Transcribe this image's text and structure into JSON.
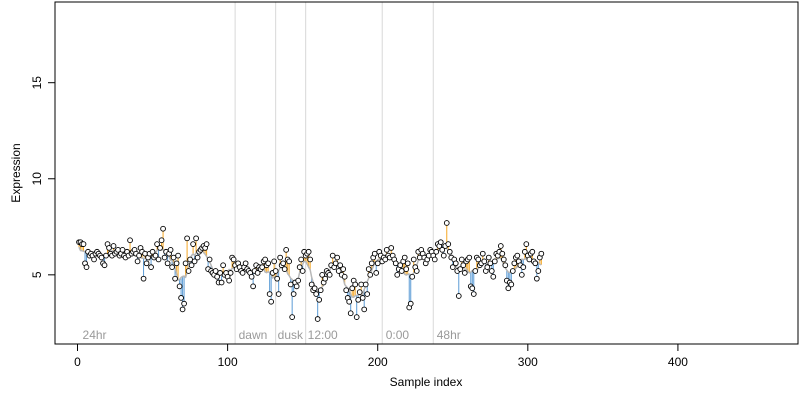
{
  "chart_data": {
    "type": "scatter",
    "xlabel": "Sample index",
    "ylabel": "Expression",
    "xlim": [
      -15,
      480
    ],
    "ylim": [
      1.4,
      19.2
    ],
    "x_ticks": [
      0,
      100,
      200,
      300,
      400
    ],
    "y_ticks": [
      5,
      10,
      15
    ],
    "baseline": 5.7,
    "grid": false,
    "legend": "none",
    "colors": {
      "up": "#f5a623",
      "down": "#5b9bd5",
      "point_fill": "#ffffff",
      "point_stroke": "#000000",
      "trend": "#b8b8b8",
      "vline": "#d8d8d8"
    },
    "annotations": [
      {
        "x": 2,
        "label": "24hr"
      },
      {
        "x": 106,
        "label": "dawn"
      },
      {
        "x": 132,
        "label": "dusk"
      },
      {
        "x": 152,
        "label": "12:00"
      },
      {
        "x": 204,
        "label": "0:00"
      },
      {
        "x": 238,
        "label": "48hr"
      }
    ],
    "vlines": [
      105,
      132,
      152,
      203,
      237
    ],
    "series": [
      {
        "x_start": 1,
        "values": [
          6.7,
          6.7,
          6.6,
          6.6,
          5.6,
          5.4,
          6.2,
          6.0,
          6.1,
          6.0,
          5.8,
          6.1,
          6.2,
          6.1,
          6.0,
          5.9,
          5.6,
          5.5,
          6.0,
          6.6,
          6.4,
          6.1,
          6.0,
          6.5,
          6.1,
          6.2,
          6.3,
          6.0,
          6.1,
          6.3,
          6.0,
          5.9,
          6.2,
          6.0,
          6.8,
          6.1,
          6.2,
          6.3,
          6.1,
          5.7,
          6.0,
          6.4,
          6.2,
          4.8,
          6.1,
          5.6,
          5.9,
          6.1,
          5.4,
          6.2,
          5.9,
          6.0,
          6.6,
          5.8,
          6.4,
          6.8,
          7.4,
          5.9,
          6.2,
          5.6,
          6.1,
          6.3,
          5.4,
          5.9,
          4.8,
          5.6,
          6.0,
          4.4,
          3.8,
          3.2,
          3.5,
          5.6,
          6.9,
          5.2,
          5.8,
          5.5,
          6.6,
          5.7,
          6.9,
          5.9,
          6.2,
          6.3,
          6.4,
          6.5,
          6.4,
          6.6,
          5.3,
          5.8,
          5.2,
          5.1,
          5.0,
          5.2,
          4.9,
          4.6,
          5.1,
          4.6,
          5.5,
          5.0,
          5.1,
          4.9,
          4.7,
          5.1,
          5.9,
          5.8,
          5.5,
          5.3,
          5.6,
          5.4,
          5.2,
          5.1,
          5.4,
          5.6,
          5.3,
          5.2,
          5.1,
          4.9,
          4.4,
          5.2,
          5.5,
          5.1,
          5.4,
          5.3,
          5.4,
          5.7,
          5.8,
          5.5,
          5.6,
          4.0,
          3.6,
          5.1,
          5.7,
          5.2,
          4.8,
          4.0,
          5.9,
          5.5,
          5.6,
          5.3,
          6.3,
          5.8,
          5.7,
          4.5,
          2.8,
          4.0,
          4.6,
          4.4,
          4.7,
          5.4,
          5.8,
          5.2,
          6.2,
          6.0,
          6.1,
          6.2,
          5.8,
          4.5,
          4.2,
          4.3,
          4.0,
          2.7,
          3.7,
          4.2,
          5.0,
          4.6,
          4.8,
          5.2,
          5.1,
          5.0,
          5.5,
          6.0,
          5.4,
          5.6,
          5.9,
          5.2,
          5.5,
          5.0,
          5.3,
          4.9,
          4.2,
          3.8,
          3.6,
          3.0,
          4.3,
          4.7,
          4.5,
          2.8,
          3.7,
          4.1,
          4.5,
          3.8,
          3.2,
          4.5,
          4.0,
          5.3,
          5.0,
          5.6,
          5.9,
          6.1,
          5.1,
          5.6,
          6.2,
          6.0,
          5.7,
          5.9,
          5.8,
          6.3,
          6.0,
          5.9,
          6.4,
          6.0,
          5.8,
          5.6,
          5.0,
          5.3,
          5.5,
          5.2,
          5.7,
          5.9,
          5.3,
          5.6,
          3.3,
          3.5,
          4.9,
          5.8,
          5.4,
          5.2,
          6.2,
          5.9,
          6.3,
          6.1,
          5.9,
          5.6,
          5.8,
          6.0,
          6.3,
          6.2,
          6.0,
          5.8,
          6.2,
          6.6,
          6.5,
          6.7,
          6.3,
          6.0,
          6.5,
          7.7,
          6.6,
          6.2,
          5.9,
          5.4,
          5.8,
          5.6,
          5.2,
          3.9,
          5.3,
          5.8,
          5.5,
          5.1,
          5.7,
          5.8,
          5.9,
          4.4,
          4.3,
          4.0,
          5.2,
          5.9,
          5.8,
          5.5,
          5.6,
          6.1,
          5.7,
          5.2,
          5.4,
          5.9,
          5.6,
          5.2,
          4.9,
          5.7,
          6.1,
          6.0,
          6.2,
          6.5,
          6.1,
          5.8,
          5.5,
          4.7,
          4.3,
          4.6,
          4.5,
          5.2,
          5.6,
          5.9,
          6.0,
          5.7,
          5.5,
          5.0,
          5.4,
          6.2,
          6.6,
          6.0,
          5.8,
          6.1,
          6.2,
          5.7,
          5.6,
          4.8,
          5.2,
          5.9,
          6.1
        ]
      }
    ]
  }
}
